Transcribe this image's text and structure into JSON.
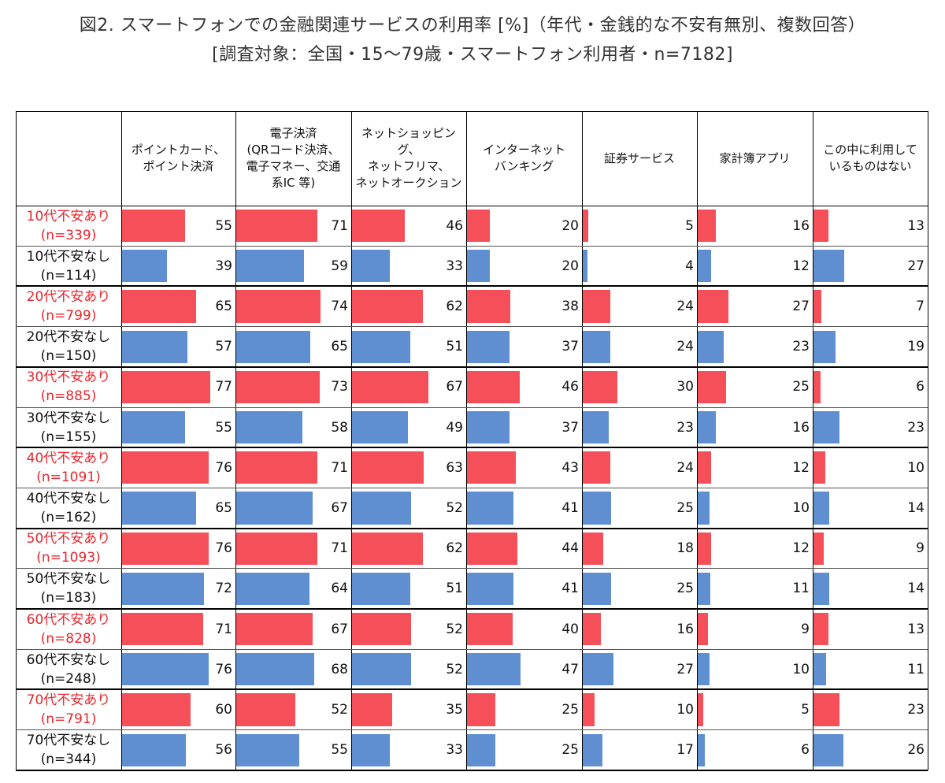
{
  "title": "図2. スマートフォンでの金融関連サービスの利用率 [%]（年代・金銭的な不安有無別、複数回答）",
  "subtitle": "[調査対象：全国・15〜79歳・スマートフォン利用者・n=7182]",
  "colors": {
    "anxious": "#f5505a",
    "not_anxious": "#5f8fd0",
    "anxious_label": "#e8262d"
  },
  "chart_data": {
    "type": "table",
    "title": "図2. スマートフォンでの金融関連サービスの利用率 [%]（年代・金銭的な不安有無別、複数回答）",
    "subtitle": "[調査対象：全国・15〜79歳・スマートフォン利用者・n=7182]",
    "columns": [
      "ポイントカード、\nポイント決済",
      "電子決済\n(QRコード決済、\n電子マネー、交通\n系IC 等)",
      "ネットショッピング、\nネットフリマ、\nネットオークション",
      "インターネット\nバンキング",
      "証券サービス",
      "家計簿アプリ",
      "この中に利用して\nいるものはない"
    ],
    "rows": [
      {
        "label": "10代不安あり\n(n=339)",
        "anxious": true,
        "values": [
          55,
          71,
          46,
          20,
          5,
          16,
          13
        ]
      },
      {
        "label": "10代不安なし\n(n=114)",
        "anxious": false,
        "values": [
          39,
          59,
          33,
          20,
          4,
          12,
          27
        ]
      },
      {
        "label": "20代不安あり\n(n=799)",
        "anxious": true,
        "values": [
          65,
          74,
          62,
          38,
          24,
          27,
          7
        ]
      },
      {
        "label": "20代不安なし\n(n=150)",
        "anxious": false,
        "values": [
          57,
          65,
          51,
          37,
          24,
          23,
          19
        ]
      },
      {
        "label": "30代不安あり\n(n=885)",
        "anxious": true,
        "values": [
          77,
          73,
          67,
          46,
          30,
          25,
          6
        ]
      },
      {
        "label": "30代不安なし\n(n=155)",
        "anxious": false,
        "values": [
          55,
          58,
          49,
          37,
          23,
          16,
          23
        ]
      },
      {
        "label": "40代不安あり\n(n=1091)",
        "anxious": true,
        "values": [
          76,
          71,
          63,
          43,
          24,
          12,
          10
        ]
      },
      {
        "label": "40代不安なし\n(n=162)",
        "anxious": false,
        "values": [
          65,
          67,
          52,
          41,
          25,
          10,
          14
        ]
      },
      {
        "label": "50代不安あり\n(n=1093)",
        "anxious": true,
        "values": [
          76,
          71,
          62,
          44,
          18,
          12,
          9
        ]
      },
      {
        "label": "50代不安なし\n(n=183)",
        "anxious": false,
        "values": [
          72,
          64,
          51,
          41,
          25,
          11,
          14
        ]
      },
      {
        "label": "60代不安あり\n(n=828)",
        "anxious": true,
        "values": [
          71,
          67,
          52,
          40,
          16,
          9,
          13
        ]
      },
      {
        "label": "60代不安なし\n(n=248)",
        "anxious": false,
        "values": [
          76,
          68,
          52,
          47,
          27,
          10,
          11
        ]
      },
      {
        "label": "70代不安あり\n(n=791)",
        "anxious": true,
        "values": [
          60,
          52,
          35,
          25,
          10,
          5,
          23
        ]
      },
      {
        "label": "70代不安なし\n(n=344)",
        "anxious": false,
        "values": [
          56,
          55,
          33,
          25,
          17,
          6,
          26
        ]
      }
    ]
  }
}
